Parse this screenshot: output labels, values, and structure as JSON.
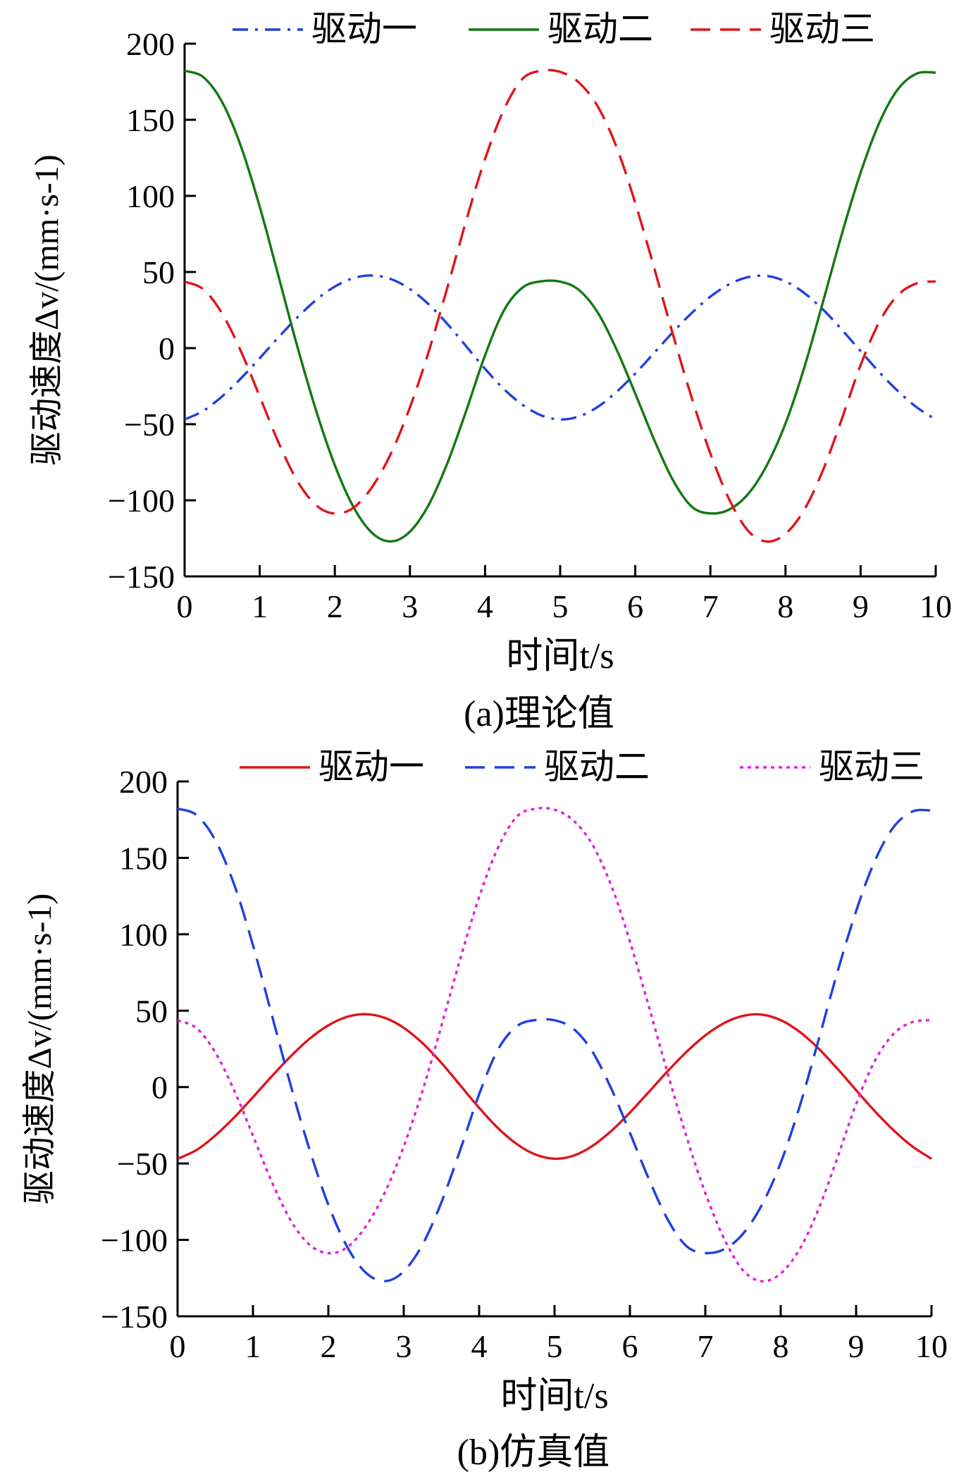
{
  "chart_data": [
    {
      "type": "line",
      "caption": "(a)理论值",
      "xlabel": "时间t/s",
      "ylabel": "驱动速度Δv/(mm·s-1)",
      "xlim": [
        0,
        10
      ],
      "ylim": [
        -150,
        200
      ],
      "xticks": [
        "0",
        "1",
        "2",
        "3",
        "4",
        "5",
        "6",
        "7",
        "8",
        "9",
        "10"
      ],
      "yticks": [
        "−150",
        "−100",
        "−50",
        "0",
        "50",
        "100",
        "150",
        "200"
      ],
      "grid": false,
      "legend_position": "top",
      "x": [
        0,
        0.25,
        0.5,
        0.75,
        1,
        1.25,
        1.5,
        1.75,
        2,
        2.25,
        2.5,
        2.75,
        3,
        3.25,
        3.5,
        3.75,
        4,
        4.25,
        4.5,
        4.75,
        5,
        5.25,
        5.5,
        5.75,
        6,
        6.25,
        6.5,
        6.75,
        7,
        7.25,
        7.5,
        7.75,
        8,
        8.25,
        8.5,
        8.75,
        9,
        9.25,
        9.5,
        9.75,
        10
      ],
      "series": [
        {
          "name": "驱动一",
          "color": "#1f3fe0",
          "style": "dashdot",
          "values": [
            -46.9,
            -41.2,
            -31.7,
            -19.9,
            -6.6,
            7.1,
            20.1,
            31.6,
            40.4,
            46.0,
            47.7,
            45.3,
            38.8,
            28.7,
            15.8,
            1.1,
            -13.6,
            -26.9,
            -37.3,
            -44.2,
            -46.9,
            -44.9,
            -38.6,
            -28.8,
            -16.7,
            -3.2,
            10.4,
            23.0,
            33.8,
            41.9,
            46.6,
            47.4,
            43.8,
            36.2,
            25.3,
            12.1,
            -2.0,
            -15.9,
            -28.4,
            -39.0,
            -46.9
          ]
        },
        {
          "name": "驱动二",
          "color": "#127812",
          "style": "solid",
          "values": [
            182.2,
            178.0,
            161.6,
            132.6,
            92.9,
            47.2,
            1.2,
            -40.9,
            -77.0,
            -104.6,
            -121.6,
            -127.0,
            -120.6,
            -102.9,
            -75.4,
            -41.0,
            -4.7,
            24.6,
            39.8,
            43.9,
            43.7,
            38.2,
            23.4,
            -0.8,
            -29.9,
            -60.1,
            -86.6,
            -104.1,
            -108.6,
            -106.1,
            -96.0,
            -77.1,
            -49.5,
            -12.8,
            30.5,
            74.9,
            115.2,
            148.2,
            170.3,
            180.4,
            181.0
          ]
        },
        {
          "name": "驱动三",
          "color": "#e0141a",
          "style": "dashed",
          "values": [
            43.7,
            38.6,
            22.7,
            -2.1,
            -31.8,
            -62.0,
            -87.2,
            -103.2,
            -108.7,
            -104.8,
            -91.0,
            -68.9,
            -38.9,
            -2.2,
            40.1,
            84.0,
            124.3,
            156.6,
            177.0,
            182.2,
            181.5,
            174.5,
            158.8,
            132.2,
            95.3,
            52.9,
            9.2,
            -32.5,
            -69.3,
            -99.3,
            -119.9,
            -127.1,
            -122.0,
            -106.2,
            -80.1,
            -46.5,
            -11.1,
            17.3,
            35.0,
            42.6,
            43.8
          ]
        }
      ]
    },
    {
      "type": "line",
      "caption": "(b)仿真值",
      "xlabel": "时间t/s",
      "ylabel": "驱动速度Δv/(mm·s-1)",
      "xlim": [
        0,
        10
      ],
      "ylim": [
        -150,
        200
      ],
      "xticks": [
        "0",
        "1",
        "2",
        "3",
        "4",
        "5",
        "6",
        "7",
        "8",
        "9",
        "10"
      ],
      "yticks": [
        "−150",
        "−100",
        "−50",
        "0",
        "50",
        "100",
        "150",
        "200"
      ],
      "grid": false,
      "legend_position": "top",
      "x": [
        0,
        0.25,
        0.5,
        0.75,
        1,
        1.25,
        1.5,
        1.75,
        2,
        2.25,
        2.5,
        2.75,
        3,
        3.25,
        3.5,
        3.75,
        4,
        4.25,
        4.5,
        4.75,
        5,
        5.25,
        5.5,
        5.75,
        6,
        6.25,
        6.5,
        6.75,
        7,
        7.25,
        7.5,
        7.75,
        8,
        8.25,
        8.5,
        8.75,
        9,
        9.25,
        9.5,
        9.75,
        10
      ],
      "series": [
        {
          "name": "驱动一",
          "color": "#e0141a",
          "style": "solid",
          "values": [
            -46.9,
            -41.2,
            -31.7,
            -19.9,
            -6.6,
            7.1,
            20.1,
            31.6,
            40.4,
            46.0,
            47.7,
            45.3,
            38.8,
            28.7,
            15.8,
            1.1,
            -13.6,
            -26.9,
            -37.3,
            -44.2,
            -46.9,
            -44.9,
            -38.6,
            -28.8,
            -16.7,
            -3.2,
            10.4,
            23.0,
            33.8,
            41.9,
            46.6,
            47.4,
            43.8,
            36.2,
            25.3,
            12.1,
            -2.0,
            -15.9,
            -28.4,
            -39.0,
            -46.9
          ]
        },
        {
          "name": "驱动二",
          "color": "#1f3fe0",
          "style": "dashed",
          "values": [
            182.2,
            178.0,
            161.6,
            132.6,
            92.9,
            47.2,
            1.2,
            -40.9,
            -77.0,
            -104.6,
            -121.6,
            -127.0,
            -120.6,
            -102.9,
            -75.4,
            -41.0,
            -4.7,
            24.6,
            39.8,
            43.9,
            43.7,
            38.2,
            23.4,
            -0.8,
            -29.9,
            -60.1,
            -86.6,
            -104.1,
            -108.6,
            -106.1,
            -96.0,
            -77.1,
            -49.5,
            -12.8,
            30.5,
            74.9,
            115.2,
            148.2,
            170.3,
            180.4,
            181.0
          ]
        },
        {
          "name": "驱动三",
          "color": "#e020e0",
          "style": "dotted",
          "values": [
            43.7,
            38.6,
            22.7,
            -2.1,
            -31.8,
            -62.0,
            -87.2,
            -103.2,
            -108.7,
            -104.8,
            -91.0,
            -68.9,
            -38.9,
            -2.2,
            40.1,
            84.0,
            124.3,
            156.6,
            177.0,
            182.2,
            181.5,
            174.5,
            158.8,
            132.2,
            95.3,
            52.9,
            9.2,
            -32.5,
            -69.3,
            -99.3,
            -119.9,
            -127.1,
            -122.0,
            -106.2,
            -80.1,
            -46.5,
            -11.1,
            17.3,
            35.0,
            42.6,
            43.8
          ]
        }
      ]
    }
  ]
}
